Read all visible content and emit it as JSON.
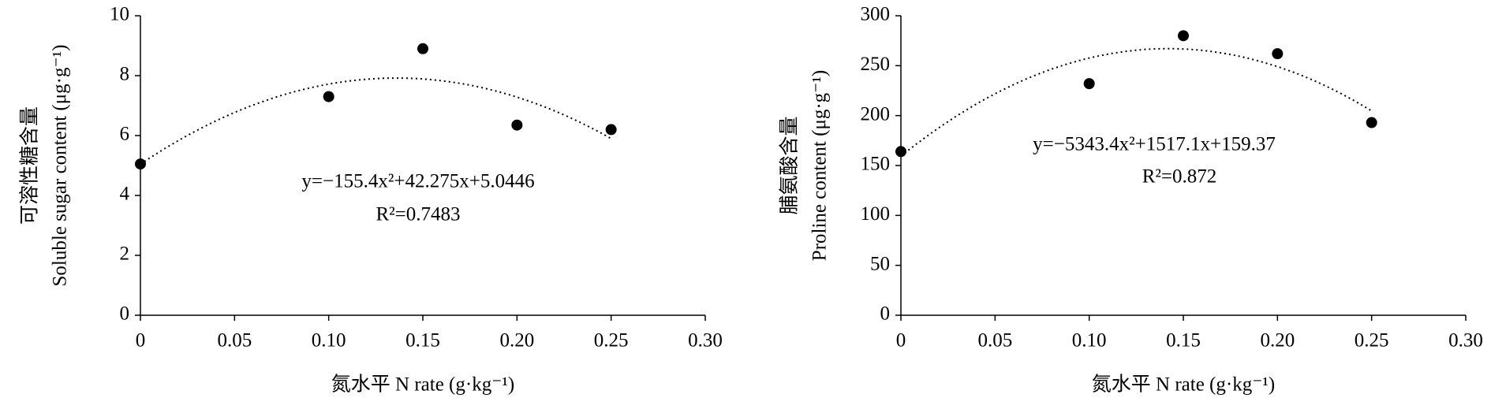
{
  "chart_data": [
    {
      "type": "scatter",
      "ylabel": [
        "可溶性糖含量",
        "Soluble sugar content (μg·g⁻¹)"
      ],
      "xlabel": "氮水平 N rate (g·kg⁻¹)",
      "x": [
        0,
        0.1,
        0.15,
        0.2,
        0.25
      ],
      "values": [
        5.05,
        7.3,
        8.9,
        6.35,
        6.2
      ],
      "color": "#000000",
      "xlim": [
        0,
        0.3
      ],
      "xticks": [
        0,
        0.05,
        {
          "value": 0.1,
          "label": "0.10"
        },
        0.15,
        {
          "value": 0.2,
          "label": "0.20"
        },
        0.25,
        {
          "value": 0.3,
          "label": "0.30"
        }
      ],
      "ylim": [
        0,
        10
      ],
      "yticks": [
        0,
        2,
        4,
        6,
        8,
        10
      ],
      "trendline": {
        "coefficients": [
          -155.4,
          42.275,
          5.0446
        ],
        "equation": "y=−155.4x²+42.275x+5.0446",
        "r2": "R²=0.7483"
      }
    },
    {
      "type": "scatter",
      "ylabel": [
        "脯氨酸含量",
        "Proline content (μg·g⁻¹)"
      ],
      "xlabel": "氮水平 N rate (g·kg⁻¹)",
      "x": [
        0,
        0.1,
        0.15,
        0.2,
        0.25
      ],
      "values": [
        164,
        232,
        280,
        262,
        193
      ],
      "color": "#000000",
      "xlim": [
        0,
        0.3
      ],
      "xticks": [
        0,
        0.05,
        {
          "value": 0.1,
          "label": "0.10"
        },
        0.15,
        {
          "value": 0.2,
          "label": "0.20"
        },
        0.25,
        {
          "value": 0.3,
          "label": "0.30"
        }
      ],
      "ylim": [
        0,
        300
      ],
      "yticks": [
        0,
        50,
        100,
        150,
        200,
        250,
        300
      ],
      "trendline": {
        "coefficients": [
          -5343.4,
          1517.1,
          159.37
        ],
        "equation": "y=−5343.4x²+1517.1x+159.37",
        "r2": "R²=0.872"
      }
    }
  ]
}
